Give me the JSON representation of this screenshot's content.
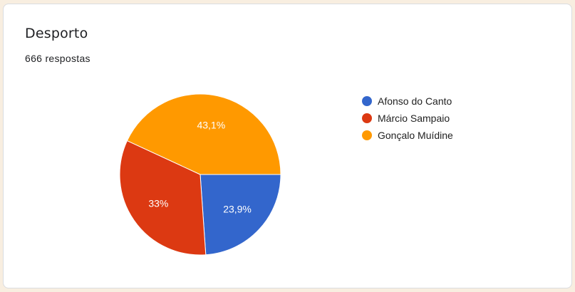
{
  "card": {
    "title": "Desporto",
    "responses": "666 respostas"
  },
  "chart_data": {
    "type": "pie",
    "title": "Desporto",
    "legend_position": "right",
    "slices": [
      {
        "label": "Afonso do Canto",
        "value": 23.9,
        "display": "23,9%",
        "color": "#3366cc"
      },
      {
        "label": "Márcio Sampaio",
        "value": 33,
        "display": "33%",
        "color": "#dc3912"
      },
      {
        "label": "Gonçalo Muídine",
        "value": 43.1,
        "display": "43,1%",
        "color": "#ff9900"
      }
    ]
  }
}
